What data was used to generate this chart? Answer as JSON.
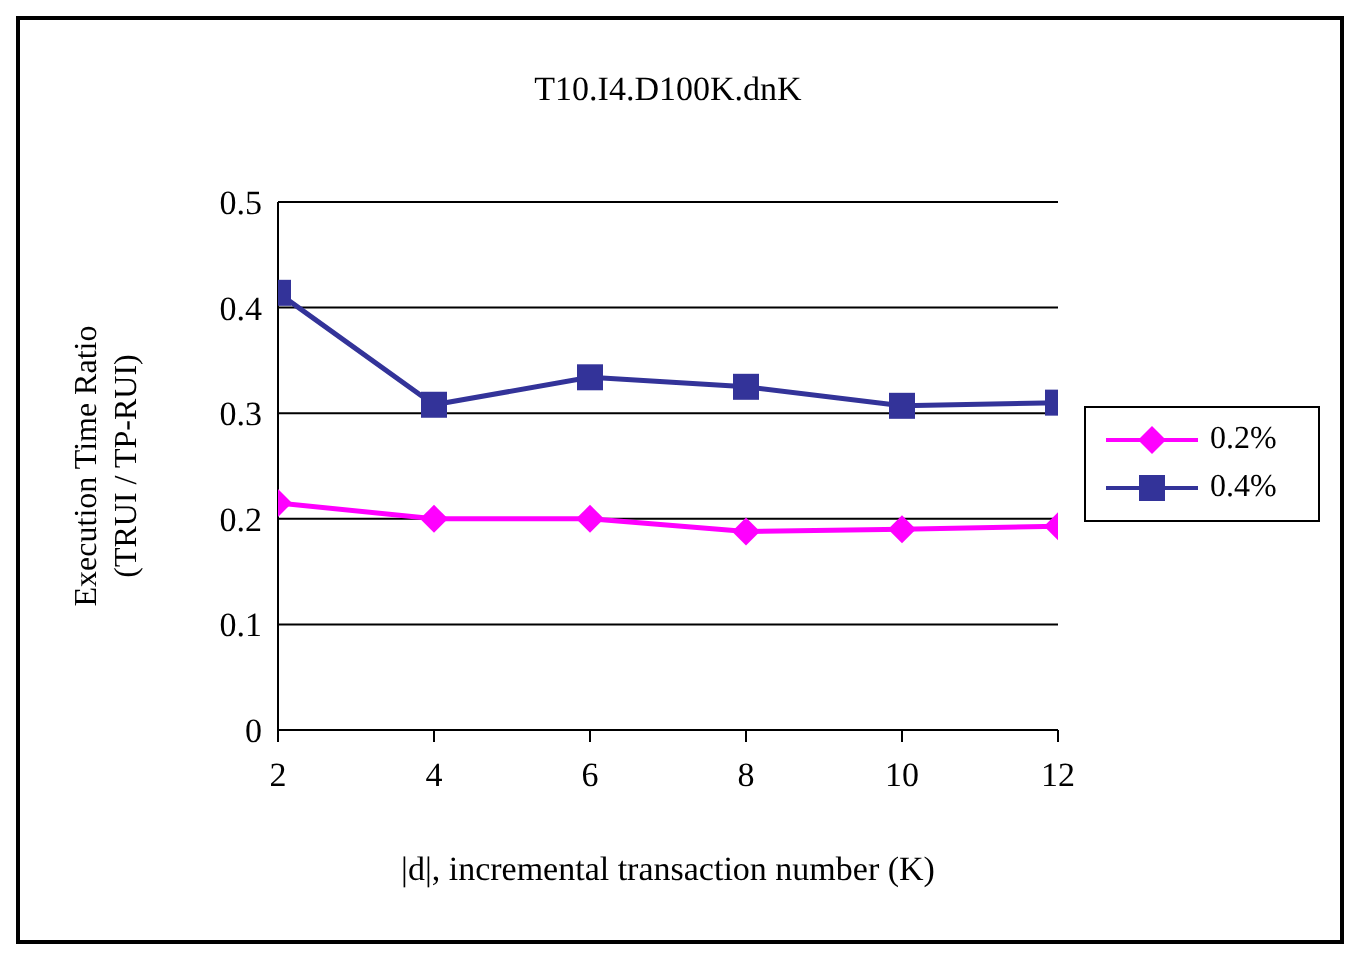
{
  "chart_data": {
    "type": "line",
    "title": "T10.I4.D100K.dnK",
    "xlabel": "|d|, incremental transaction number (K)",
    "ylabel": "Execution Time Ratio\n(TRUI / TP-RUI)",
    "x": [
      2,
      4,
      6,
      8,
      10,
      12
    ],
    "xlim": [
      2,
      12
    ],
    "xticks": [
      2,
      4,
      6,
      8,
      10,
      12
    ],
    "ylim": [
      0,
      0.5
    ],
    "yticks": [
      0,
      0.1,
      0.2,
      0.3,
      0.4,
      0.5
    ],
    "grid": "y",
    "legend": "right",
    "series": [
      {
        "name": "0.2%",
        "color": "#ff00ff",
        "marker": "diamond",
        "values": [
          0.215,
          0.2,
          0.2,
          0.188,
          0.19,
          0.193
        ]
      },
      {
        "name": "0.4%",
        "color": "#333399",
        "marker": "square",
        "values": [
          0.414,
          0.308,
          0.334,
          0.325,
          0.307,
          0.31
        ]
      }
    ]
  }
}
